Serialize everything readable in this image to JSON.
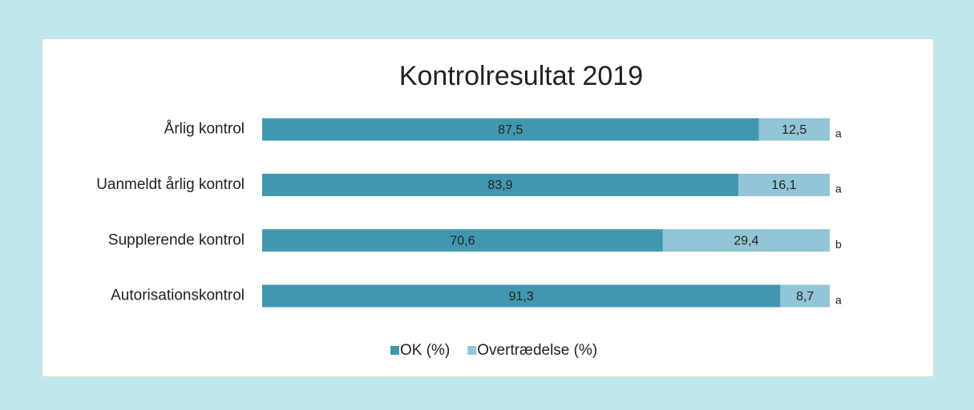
{
  "chart_data": {
    "type": "stacked-barh",
    "title": "Kontrolresultat 2019",
    "categories": [
      "Årlig kontrol",
      "Uanmeldt årlig kontrol",
      "Supplerende kontrol",
      "Autorisationskontrol"
    ],
    "series": [
      {
        "name": "OK (%)",
        "color": "#4198ae",
        "values": [
          87.5,
          83.9,
          70.6,
          91.3
        ],
        "value_labels": [
          "87,5",
          "83,9",
          "70,6",
          "91,3"
        ]
      },
      {
        "name": "Overtrædelse (%)",
        "color": "#92c5d6",
        "values": [
          12.5,
          16.1,
          29.4,
          8.7
        ],
        "value_labels": [
          "12,5",
          "16,1",
          "29,4",
          "8,7"
        ]
      }
    ],
    "annotations": [
      "a",
      "a",
      "b",
      "a"
    ],
    "xlim": [
      0,
      100
    ],
    "legend": "bottom"
  }
}
